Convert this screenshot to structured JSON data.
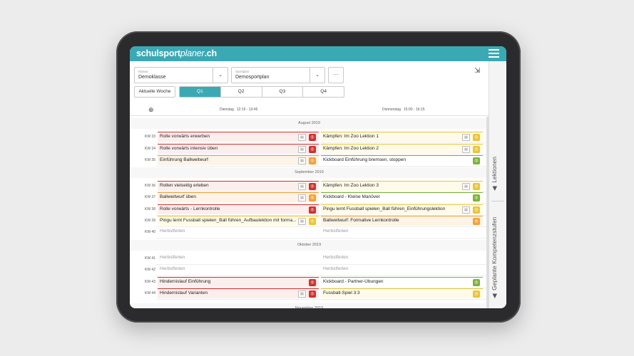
{
  "app": {
    "brand_bold": "schulsport",
    "brand_thin": "planer",
    "brand_suffix": ".ch"
  },
  "filters": {
    "klasse_label": "Klasse",
    "klasse_value": "Demoklasse",
    "sportplan_label": "Sportplan",
    "sportplan_value": "Demosportplan",
    "more_label": "···"
  },
  "toolbar": {
    "current_week": "Aktuelle Woche",
    "quarters": [
      "Q1",
      "Q2",
      "Q3",
      "Q4"
    ],
    "active_quarter": "Q1"
  },
  "columns": [
    {
      "day": "Dienstag",
      "time": "12:15 - 13:45"
    },
    {
      "day": "Donnerstag",
      "time": "15:00 - 16:15"
    }
  ],
  "months": [
    "August 2019",
    "September 2019",
    "Oktober 2019",
    "November 2019"
  ],
  "weeks": [
    {
      "kw": "KW 33",
      "tue": "Rolle vorwärts erwerben",
      "thu": "Kämpfen: Im Zoo Lektion 1"
    },
    {
      "kw": "KW 34",
      "tue": "Rolle vorwärts intensiv üben",
      "thu": "Kämpfen: Im Zoo Lektion 2"
    },
    {
      "kw": "KW 35",
      "tue": "Einführung Ballweitwurf",
      "thu": "Kickboard Einführung bremsen, stoppen"
    },
    {
      "kw": "KW 36",
      "tue": "Rollen vielseitig erleben",
      "thu": "Kämpfen: Im Zoo Lektion 3"
    },
    {
      "kw": "KW 37",
      "tue": "Ballweitwurf üben",
      "thu": "Kickboard - Kleine Manöver"
    },
    {
      "kw": "KW 38",
      "tue": "Rolle vorwärts - Lernkontrolle",
      "thu": "Pingu lernt Fussball spielen_Ball führen_Einführungslektion"
    },
    {
      "kw": "KW 39",
      "tue": "Pingu lernt Fussball spielen_Ball führen_Aufbaulektion mit forma...",
      "thu": "Ballweitwurf: Formative Lernkontrolle"
    },
    {
      "kw": "KW 40",
      "tue": "Herbstferien",
      "thu": "Herbstferien"
    },
    {
      "kw": "KW 41",
      "tue": "Herbstferien",
      "thu": "Herbstferien"
    },
    {
      "kw": "KW 42",
      "tue": "Herbstferien",
      "thu": "Herbstferien"
    },
    {
      "kw": "KW 43",
      "tue": "Hindernislauf Einführung",
      "thu": "Kickboard - Partner-Übungen"
    },
    {
      "kw": "KW 44",
      "tue": "Hindernislauf Varianten",
      "thu": "Fussball-Spiel 3:3"
    }
  ],
  "side_tabs": [
    "Lektionen",
    "Geplante Kompetenzstufen"
  ],
  "colors": {
    "accent": "#3aa9b4",
    "red": "#d0312d",
    "orange": "#f0a23a",
    "yellow": "#e9c53a",
    "green": "#7cb33a"
  }
}
